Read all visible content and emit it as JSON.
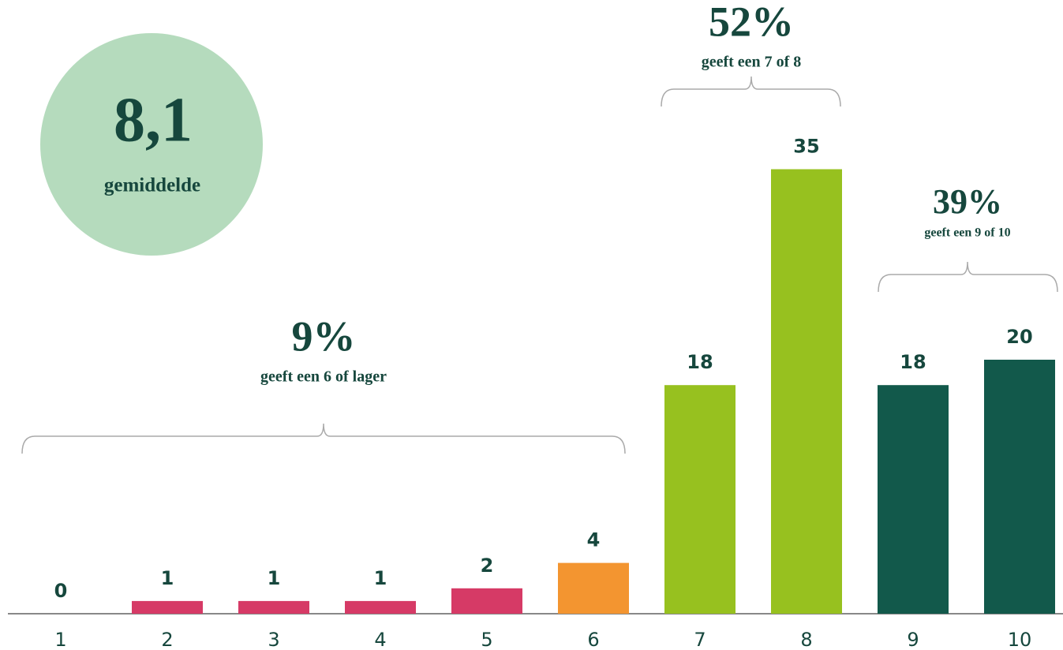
{
  "chart_data": {
    "type": "bar",
    "categories": [
      "1",
      "2",
      "3",
      "4",
      "5",
      "6",
      "7",
      "8",
      "9",
      "10"
    ],
    "values": [
      0,
      1,
      1,
      1,
      2,
      4,
      18,
      35,
      18,
      20
    ],
    "colors": [
      "#d63a66",
      "#d63a66",
      "#d63a66",
      "#d63a66",
      "#d63a66",
      "#f39530",
      "#97c11f",
      "#97c11f",
      "#12594b",
      "#12594b"
    ],
    "average": {
      "value_label": "8,1",
      "label": "gemiddelde"
    },
    "annotations": [
      {
        "value_label": "9%",
        "text": "geeft een 6 of lager"
      },
      {
        "value_label": "52%",
        "text": "geeft een 7 of 8"
      },
      {
        "value_label": "39%",
        "text": "geeft een 9 of 10"
      }
    ]
  }
}
